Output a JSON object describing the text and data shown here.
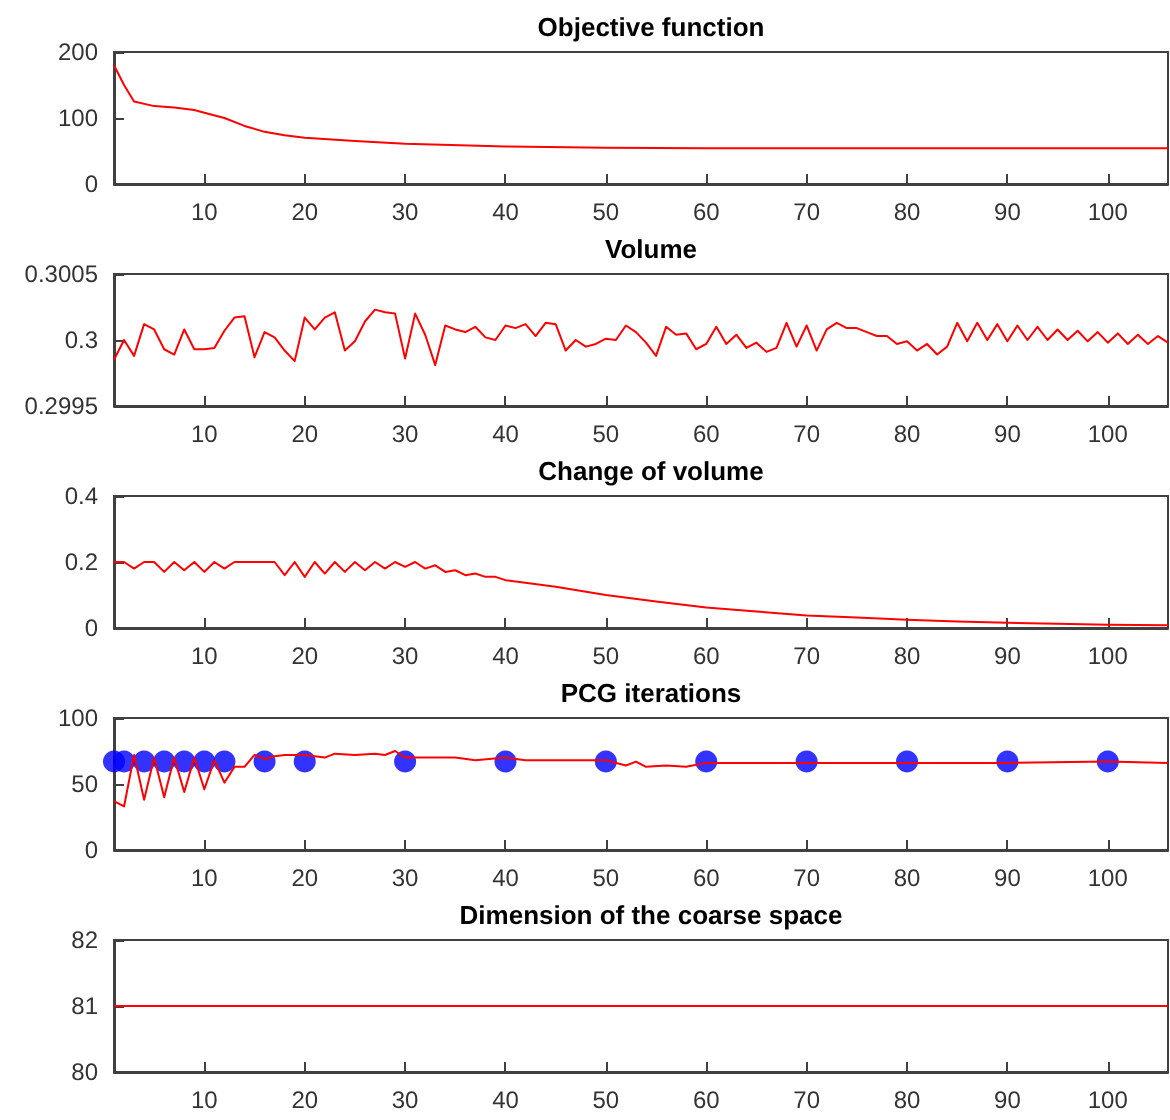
{
  "chart_data": [
    {
      "type": "line",
      "title": "Objective function",
      "xlim": [
        1,
        106
      ],
      "xticks": [
        10,
        20,
        30,
        40,
        50,
        60,
        70,
        80,
        90,
        100
      ],
      "ylim": [
        0,
        200
      ],
      "yticks": [
        0,
        100,
        200
      ],
      "grid": false,
      "series": [
        {
          "color": "#ff0000",
          "marker": "none",
          "line_style": "solid",
          "x": [
            1,
            2,
            3,
            5,
            7,
            9,
            10,
            12,
            14,
            16,
            18,
            20,
            25,
            30,
            40,
            50,
            60,
            80,
            106
          ],
          "values": [
            180,
            150,
            125,
            118,
            116,
            112,
            108,
            100,
            88,
            79,
            74,
            70,
            65,
            61,
            57,
            55,
            54,
            54,
            54
          ]
        }
      ]
    },
    {
      "type": "line",
      "title": "Volume",
      "xlim": [
        1,
        106
      ],
      "xticks": [
        10,
        20,
        30,
        40,
        50,
        60,
        70,
        80,
        90,
        100
      ],
      "ylim": [
        0.2995,
        0.3005
      ],
      "yticks": [
        0.2995,
        0.3,
        0.3005
      ],
      "grid": false,
      "series": [
        {
          "color": "#ff0000",
          "marker": "none",
          "line_style": "solid",
          "x": [
            1,
            2,
            3,
            4,
            5,
            6,
            7,
            8,
            9,
            10,
            11,
            12,
            13,
            14,
            15,
            16,
            17,
            18,
            19,
            20,
            21,
            22,
            23,
            24,
            25,
            26,
            27,
            28,
            29,
            30,
            31,
            32,
            33,
            34,
            35,
            36,
            37,
            38,
            39,
            40,
            41,
            42,
            43,
            44,
            45,
            46,
            47,
            48,
            49,
            50,
            51,
            52,
            53,
            54,
            55,
            56,
            57,
            58,
            59,
            60,
            61,
            62,
            63,
            64,
            65,
            66,
            67,
            68,
            69,
            70,
            71,
            72,
            73,
            74,
            75,
            76,
            77,
            78,
            79,
            80,
            81,
            82,
            83,
            84,
            85,
            86,
            87,
            88,
            89,
            90,
            91,
            92,
            93,
            94,
            95,
            96,
            97,
            98,
            99,
            100,
            101,
            102,
            103,
            104,
            105,
            106
          ],
          "values": [
            0.29985,
            0.3,
            0.29988,
            0.30012,
            0.30008,
            0.29993,
            0.29989,
            0.30008,
            0.29993,
            0.29993,
            0.29994,
            0.30007,
            0.30017,
            0.30018,
            0.29987,
            0.30006,
            0.30002,
            0.29992,
            0.29984,
            0.30017,
            0.30008,
            0.30017,
            0.30021,
            0.29992,
            0.29999,
            0.30014,
            0.30023,
            0.30021,
            0.3002,
            0.29986,
            0.3002,
            0.30004,
            0.29981,
            0.30011,
            0.30008,
            0.30006,
            0.3001,
            0.30002,
            0.3,
            0.30011,
            0.30009,
            0.30012,
            0.30003,
            0.30013,
            0.30012,
            0.29992,
            0.3,
            0.29995,
            0.29997,
            0.30001,
            0.3,
            0.30011,
            0.30006,
            0.29998,
            0.29988,
            0.3001,
            0.30004,
            0.30005,
            0.29993,
            0.29997,
            0.3001,
            0.29997,
            0.30004,
            0.29994,
            0.29998,
            0.29991,
            0.29994,
            0.30013,
            0.29995,
            0.30011,
            0.29992,
            0.30008,
            0.30013,
            0.30009,
            0.30009,
            0.30006,
            0.30003,
            0.30003,
            0.29997,
            0.29999,
            0.29992,
            0.29997,
            0.29989,
            0.29995,
            0.30013,
            0.29999,
            0.30013,
            0.3,
            0.30012,
            0.29999,
            0.30011,
            0.3,
            0.3001,
            0.3,
            0.30008,
            0.3,
            0.30007,
            0.29999,
            0.30006,
            0.29998,
            0.30005,
            0.29997,
            0.30004,
            0.29997,
            0.30003,
            0.29998
          ]
        }
      ]
    },
    {
      "type": "line",
      "title": "Change of volume",
      "xlim": [
        1,
        106
      ],
      "xticks": [
        10,
        20,
        30,
        40,
        50,
        60,
        70,
        80,
        90,
        100
      ],
      "ylim": [
        0,
        0.4
      ],
      "yticks": [
        0,
        0.2,
        0.4
      ],
      "grid": false,
      "series": [
        {
          "color": "#ff0000",
          "marker": "none",
          "line_style": "solid",
          "x": [
            1,
            2,
            3,
            4,
            5,
            6,
            7,
            8,
            9,
            10,
            11,
            12,
            13,
            14,
            15,
            16,
            17,
            18,
            19,
            20,
            21,
            22,
            23,
            24,
            25,
            26,
            27,
            28,
            29,
            30,
            31,
            32,
            33,
            34,
            35,
            36,
            37,
            38,
            39,
            40,
            45,
            50,
            55,
            60,
            65,
            70,
            75,
            80,
            85,
            90,
            95,
            100,
            106
          ],
          "values": [
            0.2,
            0.2,
            0.18,
            0.2,
            0.2,
            0.17,
            0.2,
            0.175,
            0.2,
            0.17,
            0.2,
            0.18,
            0.2,
            0.2,
            0.2,
            0.2,
            0.2,
            0.16,
            0.2,
            0.155,
            0.2,
            0.165,
            0.2,
            0.17,
            0.2,
            0.175,
            0.2,
            0.18,
            0.2,
            0.185,
            0.2,
            0.18,
            0.19,
            0.17,
            0.175,
            0.16,
            0.165,
            0.155,
            0.155,
            0.145,
            0.125,
            0.1,
            0.08,
            0.062,
            0.05,
            0.038,
            0.032,
            0.025,
            0.02,
            0.016,
            0.013,
            0.01,
            0.008
          ]
        }
      ]
    },
    {
      "type": "line",
      "title": "PCG iterations",
      "xlim": [
        1,
        106
      ],
      "xticks": [
        10,
        20,
        30,
        40,
        50,
        60,
        70,
        80,
        90,
        100
      ],
      "ylim": [
        0,
        100
      ],
      "yticks": [
        0,
        50,
        100
      ],
      "grid": false,
      "series": [
        {
          "color": "#ff0000",
          "marker": "none",
          "line_style": "solid",
          "x": [
            1,
            2,
            3,
            4,
            5,
            6,
            7,
            8,
            9,
            10,
            11,
            12,
            13,
            14,
            15,
            16,
            17,
            18,
            20,
            22,
            23,
            25,
            27,
            28,
            29,
            30,
            35,
            37,
            40,
            42,
            50,
            52,
            53,
            54,
            56,
            58,
            60,
            70,
            80,
            90,
            100,
            106
          ],
          "values": [
            37,
            33,
            72,
            38,
            70,
            40,
            70,
            44,
            70,
            46,
            68,
            51,
            63,
            63,
            72,
            69,
            71,
            72,
            72,
            70,
            73,
            72,
            73,
            72,
            75,
            70,
            70,
            68,
            70,
            68,
            68,
            64,
            67,
            63,
            64,
            63,
            66,
            66,
            66,
            66,
            67,
            66
          ]
        },
        {
          "type": "scatter",
          "color": "#0000ff",
          "marker": "circle",
          "x": [
            1,
            2,
            4,
            6,
            8,
            10,
            12,
            16,
            20,
            30,
            40,
            50,
            60,
            70,
            80,
            90,
            100
          ],
          "values": [
            67,
            67,
            67,
            67,
            67,
            67,
            67,
            67,
            67,
            67,
            67,
            67,
            67,
            67,
            67,
            67,
            67
          ]
        }
      ]
    },
    {
      "type": "line",
      "title": "Dimension of the coarse space",
      "xlim": [
        1,
        106
      ],
      "xticks": [
        10,
        20,
        30,
        40,
        50,
        60,
        70,
        80,
        90,
        100
      ],
      "ylim": [
        80,
        82
      ],
      "yticks": [
        80,
        81,
        82
      ],
      "grid": false,
      "series": [
        {
          "color": "#ff0000",
          "marker": "none",
          "line_style": "solid",
          "x": [
            1,
            106
          ],
          "values": [
            81,
            81
          ]
        }
      ]
    }
  ]
}
